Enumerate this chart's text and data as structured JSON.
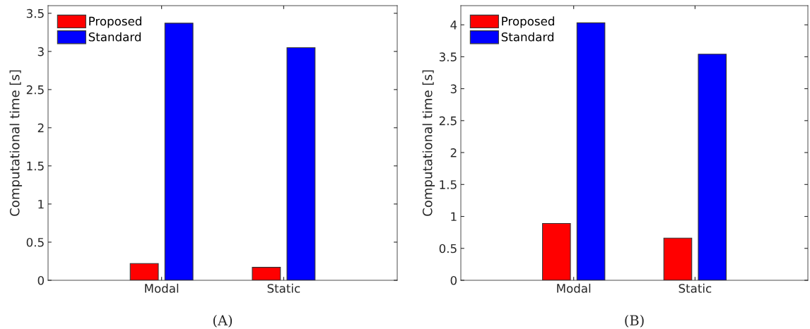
{
  "chart_data": [
    {
      "type": "bar",
      "categories": [
        "Modal",
        "Static"
      ],
      "ylabel": "Computational time [s]",
      "ylim": [
        0,
        3.6
      ],
      "yticks": [
        0,
        0.5,
        1,
        1.5,
        2,
        2.5,
        3,
        3.5
      ],
      "legend": "top left",
      "grid": false,
      "annotations": [
        "(A)"
      ],
      "series": [
        {
          "name": "Proposed",
          "color": "#ff0000",
          "values": [
            0.22,
            0.17
          ]
        },
        {
          "name": "Standard",
          "color": "#0000ff",
          "values": [
            3.37,
            3.05
          ]
        }
      ]
    },
    {
      "type": "bar",
      "categories": [
        "Modal",
        "Static"
      ],
      "ylabel": "Computational time [s]",
      "ylim": [
        0,
        4.3
      ],
      "yticks": [
        0,
        0.5,
        1,
        1.5,
        2,
        2.5,
        3,
        3.5,
        4
      ],
      "legend": "top left",
      "grid": false,
      "annotations": [
        "(B)"
      ],
      "series": [
        {
          "name": "Proposed",
          "color": "#ff0000",
          "values": [
            0.89,
            0.66
          ]
        },
        {
          "name": "Standard",
          "color": "#0000ff",
          "values": [
            4.03,
            3.54
          ]
        }
      ]
    }
  ]
}
